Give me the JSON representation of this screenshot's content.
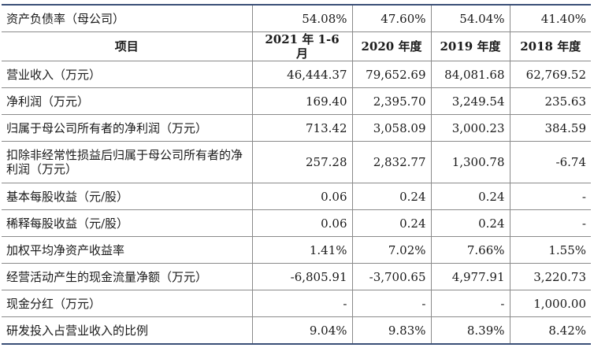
{
  "table": {
    "header": {
      "label": "项目",
      "years": [
        "2021 年 1-6 月",
        "2020 年度",
        "2019 年度",
        "2018 年度"
      ]
    },
    "top_row": {
      "label": "资产负债率（母公司）",
      "values": [
        "54.08%",
        "47.60%",
        "54.04%",
        "41.40%"
      ]
    },
    "rows": [
      {
        "label": "营业收入（万元）",
        "values": [
          "46,444.37",
          "79,652.69",
          "84,081.68",
          "62,769.52"
        ]
      },
      {
        "label": "净利润（万元）",
        "values": [
          "169.40",
          "2,395.70",
          "3,249.54",
          "235.63"
        ]
      },
      {
        "label": "归属于母公司所有者的净利润（万元）",
        "values": [
          "713.42",
          "3,058.09",
          "3,000.23",
          "384.59"
        ]
      },
      {
        "label": "扣除非经常性损益后归属于母公司所有者的净利润（万元）",
        "values": [
          "257.28",
          "2,832.77",
          "1,300.78",
          "-6.74"
        ]
      },
      {
        "label": "基本每股收益（元/股）",
        "values": [
          "0.06",
          "0.24",
          "0.24",
          "-"
        ]
      },
      {
        "label": "稀释每股收益（元/股）",
        "values": [
          "0.06",
          "0.24",
          "0.24",
          "-"
        ]
      },
      {
        "label": "加权平均净资产收益率",
        "values": [
          "1.41%",
          "7.02%",
          "7.66%",
          "1.55%"
        ]
      },
      {
        "label": "经营活动产生的现金流量净额（万元）",
        "values": [
          "-6,805.91",
          "-3,700.65",
          "4,977.91",
          "3,220.73"
        ]
      },
      {
        "label": "现金分红（万元）",
        "values": [
          "-",
          "-",
          "-",
          "1,000.00"
        ]
      },
      {
        "label": "研发投入占营业收入的比例",
        "values": [
          "9.04%",
          "9.83%",
          "8.39%",
          "8.42%"
        ]
      }
    ]
  }
}
